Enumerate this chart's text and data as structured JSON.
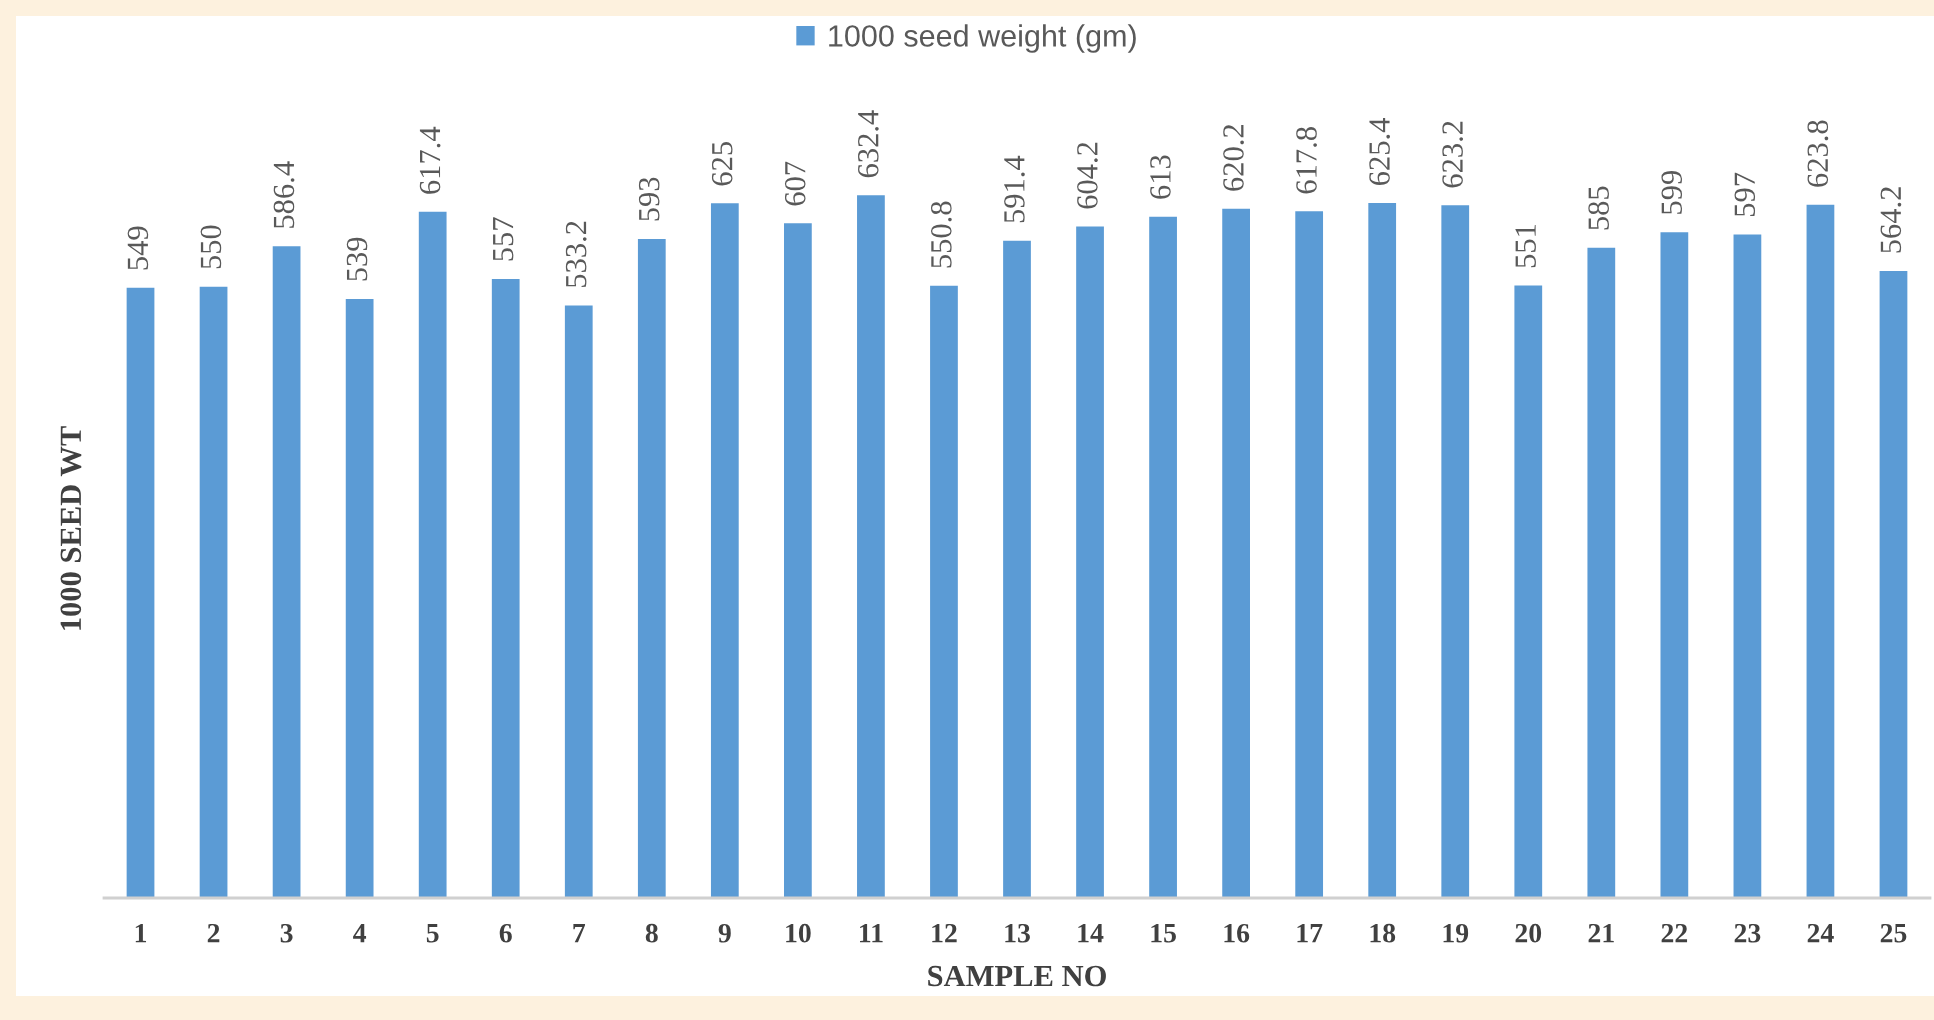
{
  "chart_data": {
    "type": "bar",
    "categories": [
      "1",
      "2",
      "3",
      "4",
      "5",
      "6",
      "7",
      "8",
      "9",
      "10",
      "11",
      "12",
      "13",
      "14",
      "15",
      "16",
      "17",
      "18",
      "19",
      "20",
      "21",
      "22",
      "23",
      "24",
      "25"
    ],
    "series": [
      {
        "name": "1000 seed weight (gm)",
        "color": "#5b9bd5",
        "values": [
          549,
          550,
          586.4,
          539,
          617.4,
          557,
          533.2,
          593,
          625,
          607,
          632.4,
          550.8,
          591.4,
          604.2,
          613,
          620.2,
          617.8,
          625.4,
          623.2,
          551,
          585,
          599,
          597,
          623.8,
          564.2
        ]
      }
    ],
    "xlabel": "SAMPLE NO",
    "ylabel": "1000 SEED WT",
    "tick_labels": "x",
    "data_labels": true,
    "legend": "top",
    "grid": false
  }
}
